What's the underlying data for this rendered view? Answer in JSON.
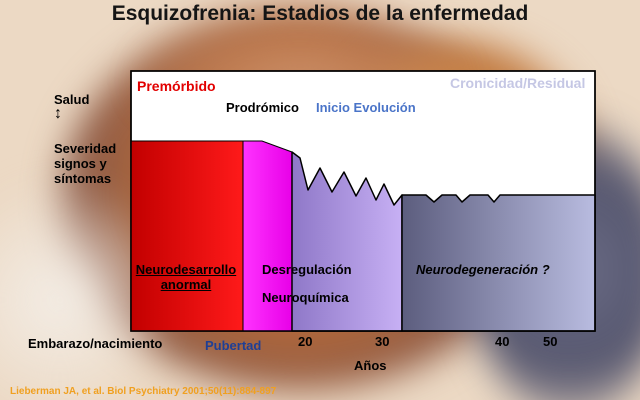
{
  "title": "Esquizofrenia: Estadios de la enfermedad",
  "left_axis": {
    "top": "Salud",
    "bottom_lines": [
      "Severidad",
      "signos y",
      "síntomas"
    ]
  },
  "phase_labels": {
    "premorbido": "Premórbido",
    "prodromico": "Prodrómico",
    "inicio": "Inicio Evolución",
    "cronicidad": "Cronicidad/Residual"
  },
  "stages": {
    "neurodesarrollo_line1": "Neurodesarrollo",
    "neurodesarrollo_line2": "anormal",
    "desregulacion_line1": "Desregulación",
    "desregulacion_line2": "Neuroquímica",
    "neurodegeneracion": "Neurodegeneración ?"
  },
  "x_axis": {
    "embarazo": "Embarazo/nacimiento",
    "pubertad": "Pubertad",
    "ticks": [
      "20",
      "30",
      "40",
      "50"
    ],
    "label": "Años"
  },
  "citation": "Lieberman JA, et al. Biol Psychiatry 2001;50(11):884-897",
  "colors": {
    "premorbido_red": "#d40000",
    "prodromico_magenta": "#ff22ff",
    "inicio_purple": "#a98be6",
    "cronicidad_slate": "#6b6c90"
  }
}
